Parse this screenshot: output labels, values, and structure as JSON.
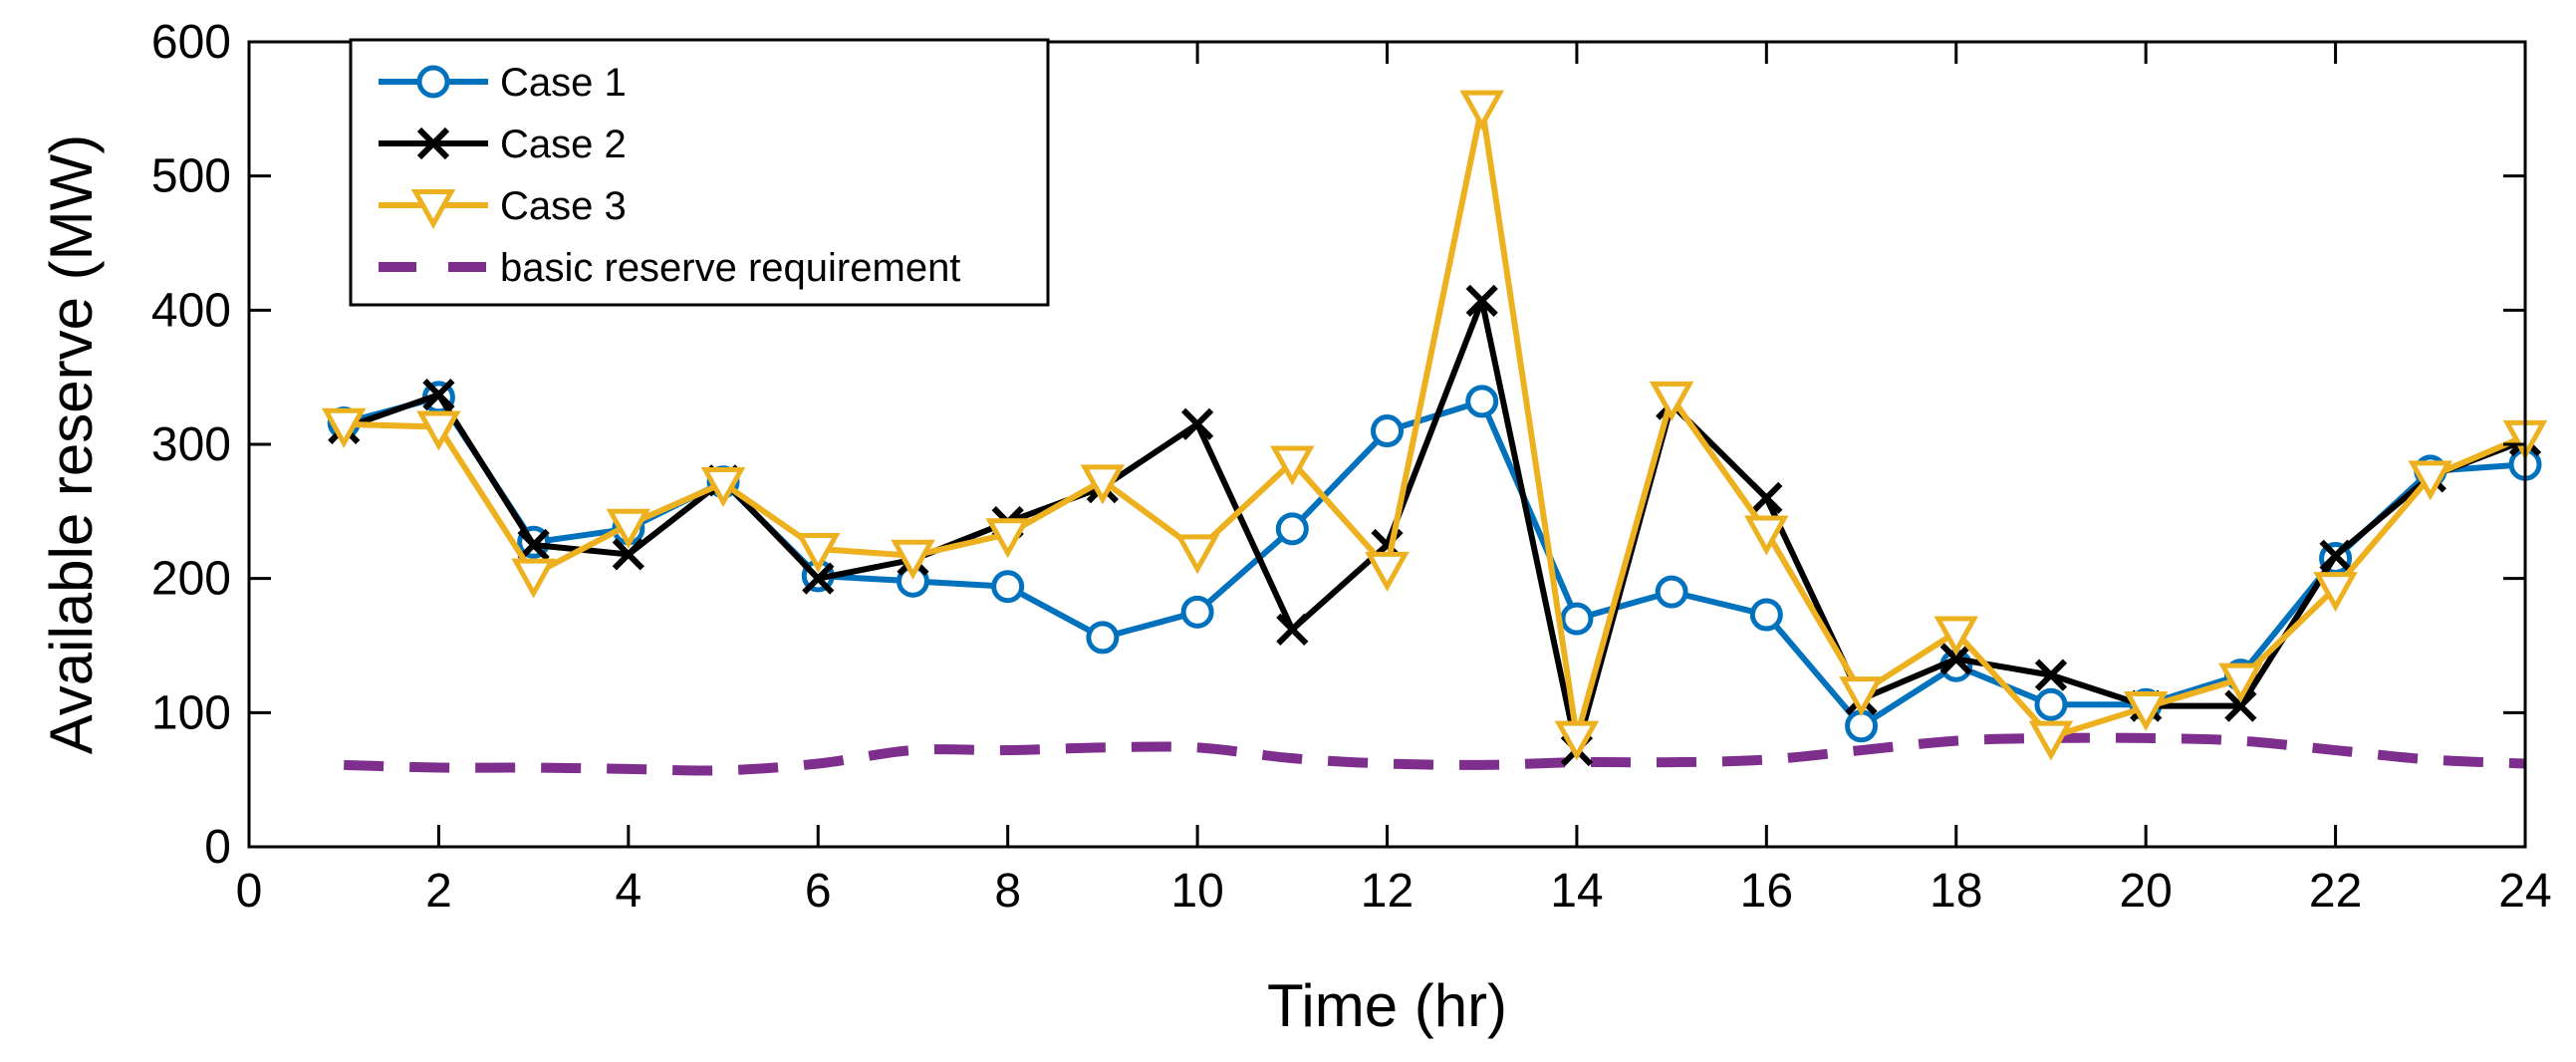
{
  "chart_data": {
    "type": "line",
    "title": "",
    "xlabel": "Time (hr)",
    "ylabel": "Available reserve (MW)",
    "xlim": [
      0,
      24
    ],
    "ylim": [
      0,
      600
    ],
    "xticks": [
      0,
      2,
      4,
      6,
      8,
      10,
      12,
      14,
      16,
      18,
      20,
      22,
      24
    ],
    "yticks": [
      0,
      100,
      200,
      300,
      400,
      500,
      600
    ],
    "grid": false,
    "legend_position": "top-left",
    "x": [
      1,
      2,
      3,
      4,
      5,
      6,
      7,
      8,
      9,
      10,
      11,
      12,
      13,
      14,
      15,
      16,
      17,
      18,
      19,
      20,
      21,
      22,
      23,
      24
    ],
    "series": [
      {
        "name": "Case 1",
        "color": "#0072BD",
        "marker": "circle",
        "style": "solid",
        "values": [
          316,
          335,
          227,
          237,
          272,
          202,
          198,
          194,
          156,
          175,
          237,
          310,
          332,
          170,
          190,
          173,
          90,
          135,
          106,
          106,
          128,
          215,
          280,
          285
        ]
      },
      {
        "name": "Case 2",
        "color": "#000000",
        "marker": "x",
        "style": "solid",
        "values": [
          312,
          337,
          225,
          218,
          273,
          200,
          214,
          242,
          268,
          315,
          162,
          225,
          407,
          72,
          330,
          260,
          110,
          140,
          128,
          105,
          105,
          217,
          276,
          303
        ]
      },
      {
        "name": "Case 3",
        "color": "#EDB120",
        "marker": "triangle-down",
        "style": "solid",
        "values": [
          315,
          313,
          203,
          240,
          271,
          222,
          217,
          233,
          273,
          221,
          287,
          208,
          552,
          82,
          335,
          235,
          115,
          160,
          82,
          104,
          125,
          193,
          276,
          306
        ]
      },
      {
        "name": "basic reserve requirement",
        "color": "#7E2F8E",
        "marker": "none",
        "style": "dashed",
        "values": [
          61,
          59,
          59,
          58,
          57,
          62,
          72,
          72,
          74,
          74,
          66,
          62,
          61,
          63,
          63,
          65,
          72,
          79,
          81,
          81,
          79,
          72,
          65,
          62
        ]
      }
    ]
  }
}
